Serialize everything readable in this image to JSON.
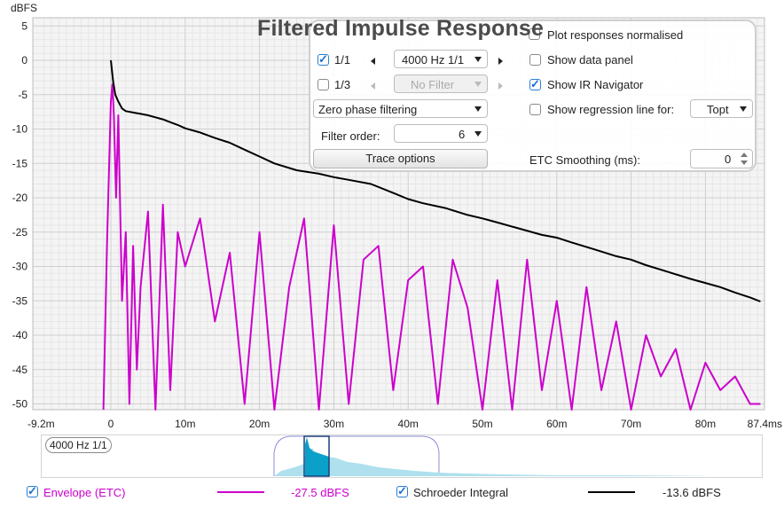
{
  "window": {
    "title": "Filtered Impulse Response"
  },
  "axes": {
    "y_unit": "dBFS",
    "y_ticks": [
      "5",
      "0",
      "-5",
      "-10",
      "-15",
      "-20",
      "-25",
      "-30",
      "-35",
      "-40",
      "-45",
      "-50"
    ],
    "x_ticks": [
      "-9.2m",
      "0",
      "10m",
      "20m",
      "30m",
      "40m",
      "50m",
      "60m",
      "70m",
      "80m",
      "87.4ms"
    ]
  },
  "panel": {
    "top_row_label": "Plot responses normalised",
    "row1": {
      "checkbox_label": "1/1",
      "checked": true,
      "select_value": "4000 Hz 1/1"
    },
    "row2": {
      "checkbox_label": "1/3",
      "checked": false,
      "select_value": "No Filter"
    },
    "filter_mode": "Zero phase filtering",
    "filter_order_label": "Filter order:",
    "filter_order_value": "6",
    "trace_options_label": "Trace options",
    "show_data_panel": {
      "label": "Show data panel",
      "checked": false
    },
    "show_ir_navigator": {
      "label": "Show IR Navigator",
      "checked": true
    },
    "show_regression": {
      "label": "Show regression line for:",
      "checked": false,
      "select_value": "Topt"
    },
    "etc_smoothing_label": "ETC Smoothing (ms):",
    "etc_smoothing_value": "0"
  },
  "navigator": {
    "label": "4000 Hz 1/1"
  },
  "legend": {
    "envelope": {
      "label": "Envelope (ETC)",
      "checked": true,
      "value": "-27.5 dBFS",
      "color": "#cc00cc"
    },
    "schroeder": {
      "label": "Schroeder Integral",
      "checked": true,
      "value": "-13.6 dBFS",
      "color": "#000000"
    }
  },
  "chart_data": {
    "type": "line",
    "title": "Filtered Impulse Response",
    "xlabel": "",
    "ylabel": "dBFS",
    "x_unit": "ms",
    "xlim": [
      -9.2,
      87.4
    ],
    "ylim": [
      -52,
      7
    ],
    "grid": true,
    "series": [
      {
        "name": "Schroeder Integral",
        "color": "#000000",
        "x": [
          0,
          0.3,
          0.6,
          1,
          1.5,
          2,
          3,
          4,
          5,
          6,
          7,
          8,
          9,
          10,
          12,
          14,
          16,
          18,
          20,
          22,
          25,
          28,
          30,
          32,
          35,
          38,
          40,
          42,
          45,
          48,
          50,
          52,
          55,
          58,
          60,
          62,
          65,
          68,
          70,
          72,
          75,
          78,
          80,
          82,
          84,
          86,
          87.4
        ],
        "y": [
          0,
          -3,
          -5,
          -6,
          -7,
          -7.4,
          -7.6,
          -7.8,
          -8.0,
          -8.3,
          -8.6,
          -9.0,
          -9.4,
          -9.9,
          -10.5,
          -11.3,
          -12.0,
          -13.0,
          -14.0,
          -15.0,
          -16.0,
          -16.5,
          -17.0,
          -17.4,
          -18.0,
          -19.3,
          -20.2,
          -20.8,
          -21.5,
          -22.5,
          -23.0,
          -23.6,
          -24.5,
          -25.4,
          -25.8,
          -26.5,
          -27.5,
          -28.5,
          -29.0,
          -29.8,
          -30.8,
          -31.8,
          -32.4,
          -33.0,
          -33.8,
          -34.5,
          -35.1
        ]
      },
      {
        "name": "Envelope (ETC)",
        "color": "#cc00cc",
        "x": [
          -1,
          -0.5,
          0,
          0.2,
          0.4,
          0.7,
          1,
          1.5,
          2,
          2.5,
          3,
          3.5,
          4,
          5,
          6,
          7,
          8,
          9,
          10,
          12,
          14,
          16,
          18,
          20,
          22,
          24,
          26,
          28,
          30,
          32,
          34,
          36,
          38,
          40,
          42,
          44,
          46,
          48,
          50,
          52,
          54,
          56,
          58,
          60,
          62,
          64,
          66,
          68,
          70,
          72,
          74,
          76,
          78,
          80,
          82,
          84,
          86,
          87.4
        ],
        "y": [
          -52,
          -26,
          -6,
          -3.5,
          -8,
          -20,
          -8,
          -35,
          -25,
          -50,
          -27,
          -45,
          -33,
          -22,
          -52,
          -21,
          -48,
          -25,
          -30,
          -23,
          -38,
          -28,
          -50,
          -25,
          -52,
          -33,
          -23,
          -52,
          -24,
          -50,
          -29,
          -27,
          -48,
          -32,
          -30,
          -50,
          -29,
          -36,
          -52,
          -32,
          -52,
          -29,
          -48,
          -35,
          -52,
          -33,
          -48,
          -38,
          -52,
          -40,
          -46,
          -42,
          -52,
          -44,
          -48,
          -46,
          -50,
          -50
        ]
      }
    ]
  }
}
